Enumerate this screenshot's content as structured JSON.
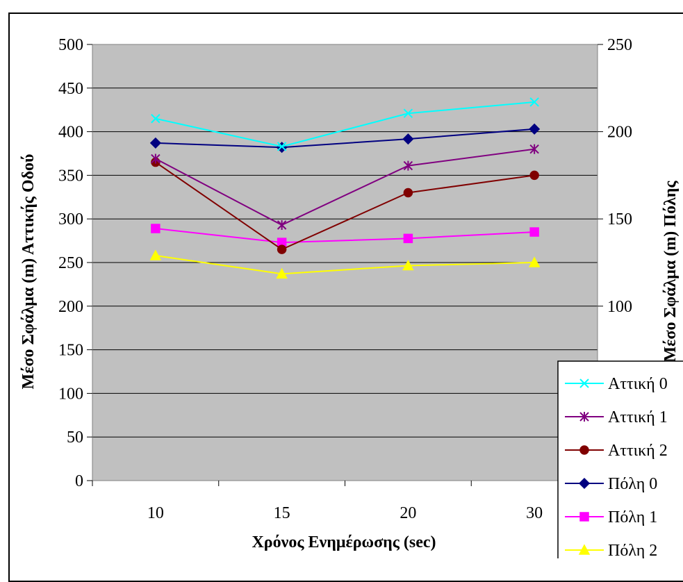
{
  "chart_data": {
    "type": "line",
    "categories": [
      "10",
      "15",
      "20",
      "30"
    ],
    "xlabel": "Χρόνος Ενημέρωσης (sec)",
    "ylabel": "Μέσο Σφάλμα (m) Αττικής Οδού",
    "y2label": "Μέσο Σφάλμα (m) Πόλης",
    "ylim": [
      0,
      500
    ],
    "y2lim": [
      0,
      250
    ],
    "yticks": [
      "0",
      "50",
      "100",
      "150",
      "200",
      "250",
      "300",
      "350",
      "400",
      "450",
      "500"
    ],
    "y2ticks": [
      "100",
      "150",
      "200",
      "250"
    ],
    "grid": true,
    "legend_position": "bottom-right",
    "series": [
      {
        "name": "Αττική 0",
        "axis": "left",
        "color": "#00FFFF",
        "marker": "x",
        "values": [
          415,
          383,
          421,
          434
        ]
      },
      {
        "name": "Αττική 1",
        "axis": "left",
        "color": "#800080",
        "marker": "star",
        "values": [
          369,
          293,
          361,
          380
        ]
      },
      {
        "name": "Αττική 2",
        "axis": "left",
        "color": "#800000",
        "marker": "circle",
        "values": [
          365,
          265,
          330,
          350
        ]
      },
      {
        "name": "Πόλη 0",
        "axis": "right",
        "color": "#000080",
        "marker": "diamond",
        "values": [
          193.5,
          191,
          195.8,
          201.5
        ]
      },
      {
        "name": "Πόλη 1",
        "axis": "right",
        "color": "#FF00FF",
        "marker": "square",
        "values": [
          144.5,
          136.5,
          138.8,
          142.5
        ]
      },
      {
        "name": "Πόλη 2",
        "axis": "right",
        "color": "#FFFF00",
        "marker": "triangle",
        "values": [
          129,
          118.5,
          123.2,
          125
        ]
      }
    ]
  }
}
